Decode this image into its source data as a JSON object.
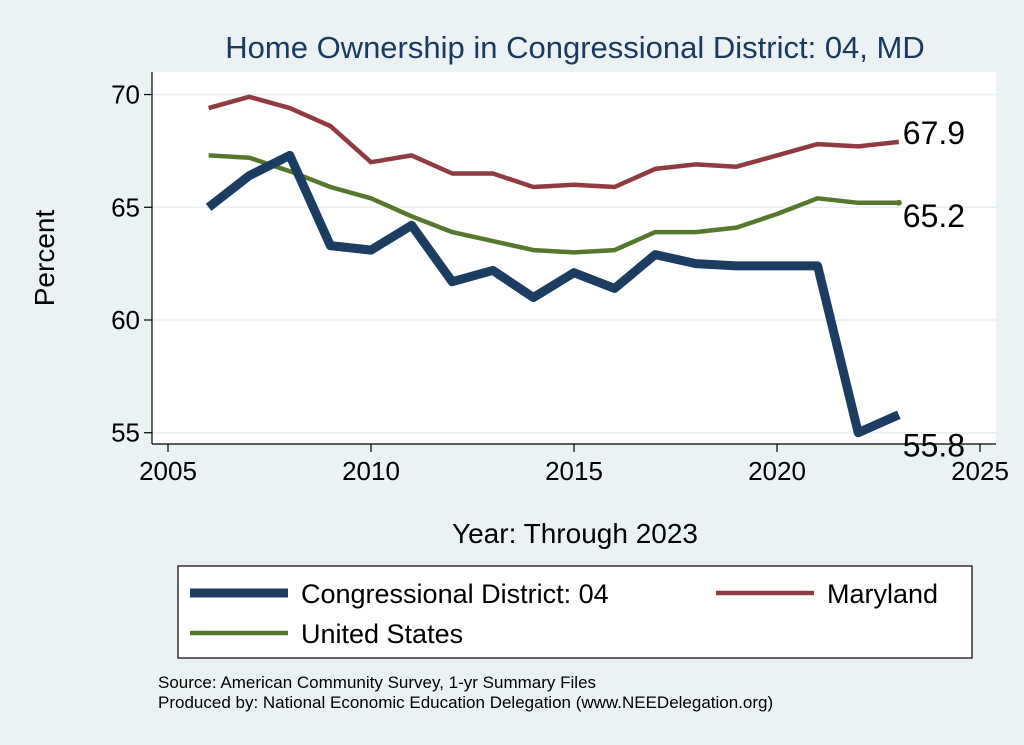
{
  "chart_data": {
    "type": "line",
    "title": "Home Ownership in Congressional District:  04, MD",
    "xlabel": "Year: Through 2023",
    "ylabel": "Percent",
    "xlim": [
      2005,
      2025
    ],
    "ylim": [
      54.5,
      71
    ],
    "xticks": [
      2005,
      2010,
      2015,
      2020,
      2025
    ],
    "yticks": [
      55,
      60,
      65,
      70
    ],
    "grid": true,
    "legend_position": "bottom",
    "x": [
      2006,
      2007,
      2008,
      2009,
      2010,
      2011,
      2012,
      2013,
      2014,
      2015,
      2016,
      2017,
      2018,
      2019,
      2020,
      2021,
      2022,
      2023
    ],
    "series": [
      {
        "name": "Congressional District:  04",
        "color": "#1b3d61",
        "values": [
          65.0,
          66.4,
          67.3,
          63.3,
          63.1,
          64.2,
          61.7,
          62.2,
          61.0,
          62.1,
          61.4,
          62.9,
          62.5,
          62.4,
          62.4,
          62.4,
          55.0,
          55.8
        ],
        "end_label": "55.8"
      },
      {
        "name": "Maryland",
        "color": "#8f3b40",
        "values": [
          69.4,
          69.9,
          69.4,
          68.6,
          67.0,
          67.3,
          66.5,
          66.5,
          65.9,
          66.0,
          65.9,
          66.7,
          66.9,
          66.8,
          67.3,
          67.8,
          67.7,
          67.9
        ],
        "end_label": "67.9"
      },
      {
        "name": "United States",
        "color": "#56782d",
        "values": [
          67.3,
          67.2,
          66.6,
          65.9,
          65.4,
          64.6,
          63.9,
          63.5,
          63.1,
          63.0,
          63.1,
          63.9,
          63.9,
          64.1,
          64.7,
          65.4,
          65.2,
          65.2
        ],
        "end_label": "65.2"
      }
    ],
    "notes": [
      "Source: American Community Survey, 1-yr Summary Files",
      "Produced by: National Economic Education Delegation (www.NEEDelegation.org)"
    ]
  }
}
